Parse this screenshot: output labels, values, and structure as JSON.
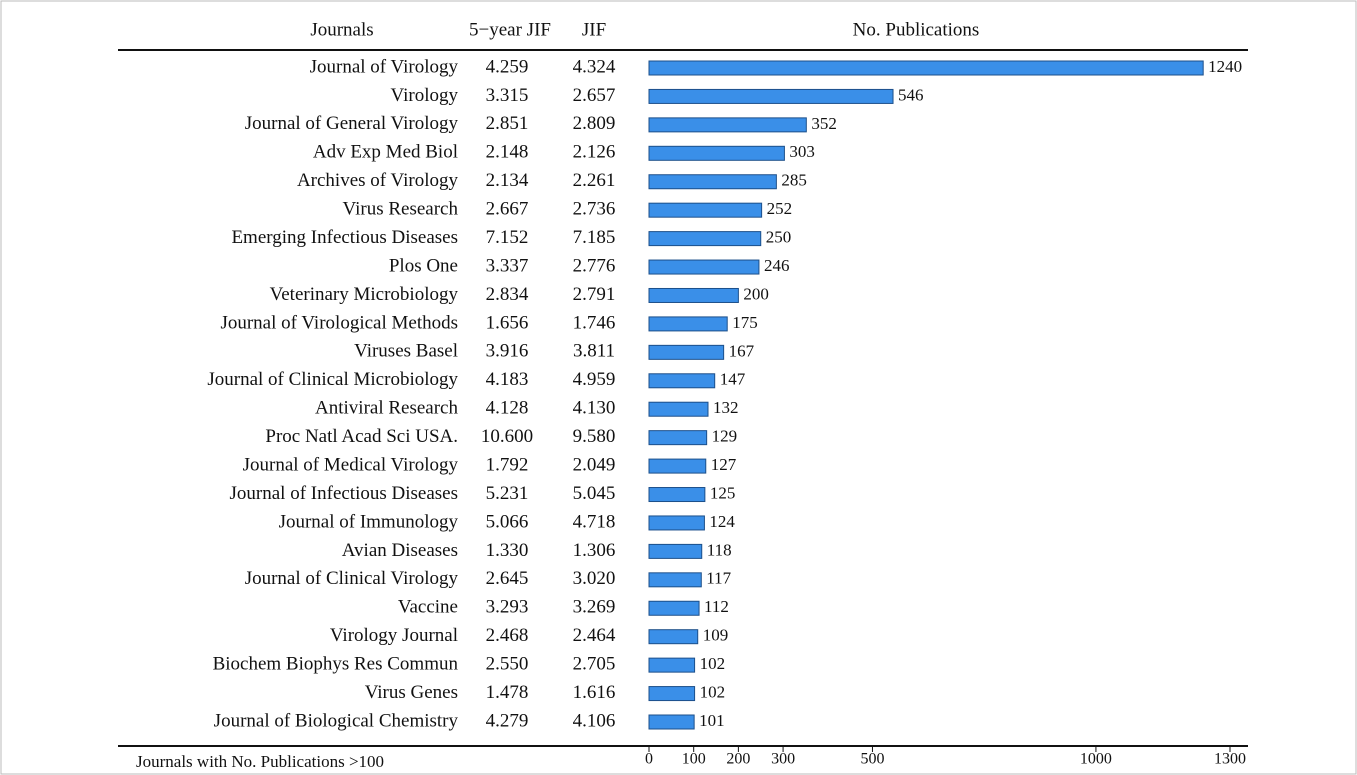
{
  "chart_data": {
    "type": "bar",
    "columns": [
      "Journals",
      "5−year JIF",
      "JIF",
      "No. Publications"
    ],
    "categories": [
      "Journal of Virology",
      "Virology",
      "Journal of General Virology",
      "Adv Exp Med Biol",
      "Archives of Virology",
      "Virus Research",
      "Emerging Infectious Diseases",
      "Plos One",
      "Veterinary Microbiology",
      "Journal of Virological Methods",
      "Viruses Basel",
      "Journal of Clinical Microbiology",
      "Antiviral Research",
      "Proc Natl Acad Sci USA.",
      "Journal of Medical Virology",
      "Journal of Infectious Diseases",
      "Journal of Immunology",
      "Avian Diseases",
      "Journal of Clinical Virology",
      "Vaccine",
      "Virology Journal",
      "Biochem Biophys Res Commun",
      "Virus Genes",
      "Journal of Biological Chemistry"
    ],
    "jif5": [
      "4.259",
      "3.315",
      "2.851",
      "2.148",
      "2.134",
      "2.667",
      "7.152",
      "3.337",
      "2.834",
      "1.656",
      "3.916",
      "4.183",
      "4.128",
      "10.600",
      "1.792",
      "5.231",
      "5.066",
      "1.330",
      "2.645",
      "3.293",
      "2.468",
      "2.550",
      "1.478",
      "4.279"
    ],
    "jif": [
      "4.324",
      "2.657",
      "2.809",
      "2.126",
      "2.261",
      "2.736",
      "7.185",
      "2.776",
      "2.791",
      "1.746",
      "3.811",
      "4.959",
      "4.130",
      "9.580",
      "2.049",
      "5.045",
      "4.718",
      "1.306",
      "3.020",
      "3.269",
      "2.464",
      "2.705",
      "1.616",
      "4.106"
    ],
    "values": [
      1240,
      546,
      352,
      303,
      285,
      252,
      250,
      246,
      200,
      175,
      167,
      147,
      132,
      129,
      127,
      125,
      124,
      118,
      117,
      112,
      109,
      102,
      102,
      101
    ],
    "color": "#3a8fe8",
    "xlim": [
      0,
      1300
    ],
    "xticks": [
      0,
      100,
      200,
      300,
      500,
      1000,
      1300
    ],
    "note": "Journals with No. Publications >100"
  }
}
